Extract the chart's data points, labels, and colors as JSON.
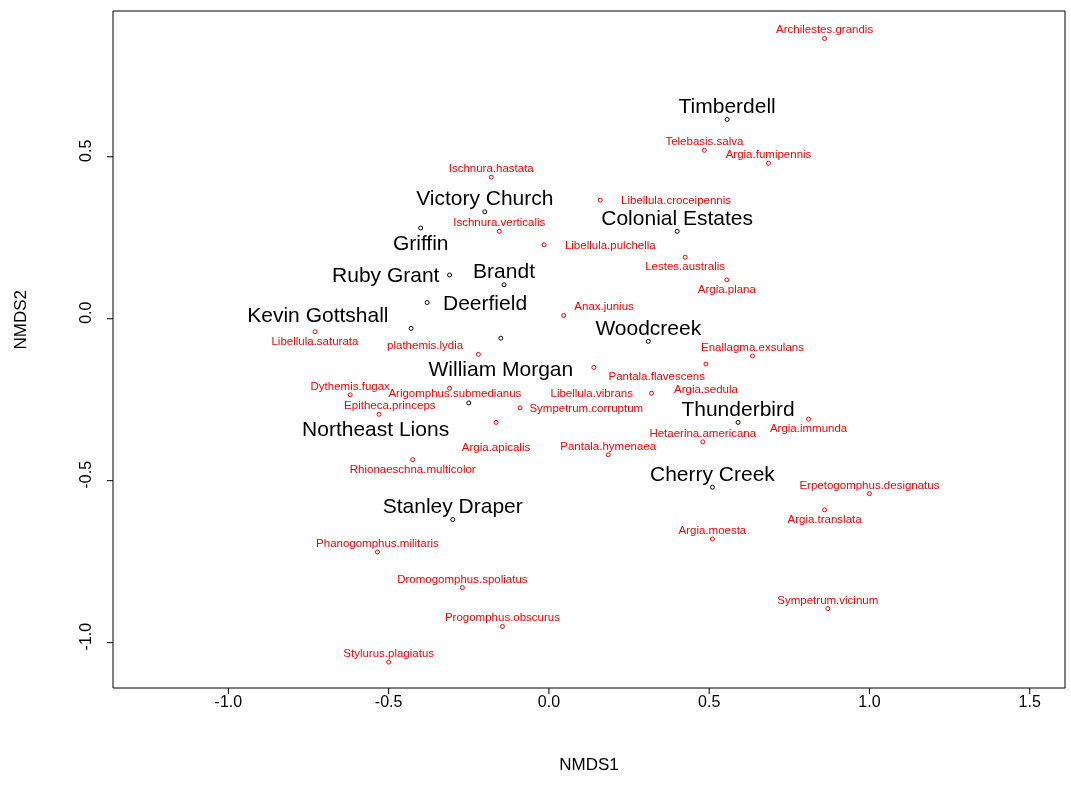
{
  "chart_data": {
    "type": "scatter",
    "xlabel": "NMDS1",
    "ylabel": "NMDS2",
    "xlim": [
      -1.36,
      1.61
    ],
    "ylim": [
      -1.14,
      0.95
    ],
    "xticks": [
      {
        "value": -1,
        "label": "-1.0"
      },
      {
        "value": -0.5,
        "label": "-0.5"
      },
      {
        "value": 0,
        "label": "0.0"
      },
      {
        "value": 0.5,
        "label": "0.5"
      },
      {
        "value": 1,
        "label": "1.0"
      },
      {
        "value": 1.5,
        "label": "1.5"
      }
    ],
    "yticks": [
      {
        "value": -1,
        "label": "-1.0"
      },
      {
        "value": -0.5,
        "label": "-0.5"
      },
      {
        "value": 0,
        "label": "0.0"
      },
      {
        "value": 0.5,
        "label": "0.5"
      }
    ],
    "grid": false,
    "marker": "circle",
    "series": [
      {
        "color": "#000000",
        "x": [
          0.556,
          -0.2,
          -0.4,
          0.4,
          -0.31,
          -0.14,
          -0.38,
          -0.43,
          -0.15,
          0.31,
          -0.25,
          0.59,
          0.51,
          -0.3
        ],
        "values": [
          0.615,
          0.33,
          0.28,
          0.27,
          0.135,
          0.105,
          0.05,
          -0.03,
          -0.06,
          -0.07,
          -0.26,
          -0.32,
          -0.52,
          -0.62
        ],
        "value_labels": [
          "Timberdell",
          "Victory Church",
          "Griffin",
          "Colonial Estates",
          "Ruby Grant",
          "Brandt",
          "Deerfield",
          "Kevin Gottshall",
          "William Morgan",
          "Woodcreek",
          "Northeast Lions",
          "Thunderbird",
          "Cherry Creek",
          "Stanley Draper"
        ]
      },
      {
        "color": "#ff0000",
        "x": [
          0.86,
          0.485,
          0.685,
          -0.18,
          0.16,
          -0.155,
          -0.015,
          0.425,
          0.555,
          0.046,
          -0.73,
          -0.22,
          0.14,
          0.635,
          0.49,
          0.32,
          -0.62,
          -0.31,
          -0.53,
          -0.09,
          -0.165,
          0.81,
          0.48,
          0.185,
          -0.425,
          1.0,
          0.86,
          0.51,
          -0.535,
          -0.27,
          -0.145,
          0.87,
          -0.5
        ],
        "values": [
          0.865,
          0.52,
          0.48,
          0.437,
          0.366,
          0.27,
          0.228,
          0.19,
          0.12,
          0.01,
          -0.04,
          -0.11,
          -0.15,
          -0.115,
          -0.14,
          -0.23,
          -0.235,
          -0.215,
          -0.295,
          -0.275,
          -0.32,
          -0.31,
          -0.38,
          -0.42,
          -0.435,
          -0.54,
          -0.59,
          -0.68,
          -0.72,
          -0.83,
          -0.95,
          -0.895,
          -1.06
        ],
        "value_labels": [
          "Archilestes.grandis",
          "Telebasis.salva",
          "Argia.fumipennis",
          "Ischnura.hastata",
          "Libellula.croceipennis",
          "Ischnura.verticalis",
          "Libellula.pulchella",
          "Lestes.australis",
          "Argia.plana",
          "Anax.junius",
          "Libellula.saturata",
          "plathemis.lydia",
          "Pantala.flavescens",
          "Enallagma.exsulans",
          "Argia.sedula",
          "Libellula.vibrans",
          "Dythemis.fugax",
          "Epitheca.princeps",
          "Arigomphus.submedianus",
          "Sympetrum.corruptum",
          "Argia.apicalis",
          "Argia.immunda",
          "Hetaerina.americana",
          "Pantala.hymenaea",
          "Rhionaeschna.multicolor",
          "Erpetogomphus.designatus",
          "Argia.translata",
          "Argia.moesta",
          "Phanogomphus.militaris",
          "Dromogomphus.spoliatus",
          "Progomphus.obscurus",
          "Sympetrum.vicinum",
          "Stylurus.plagiatus"
        ]
      }
    ]
  }
}
